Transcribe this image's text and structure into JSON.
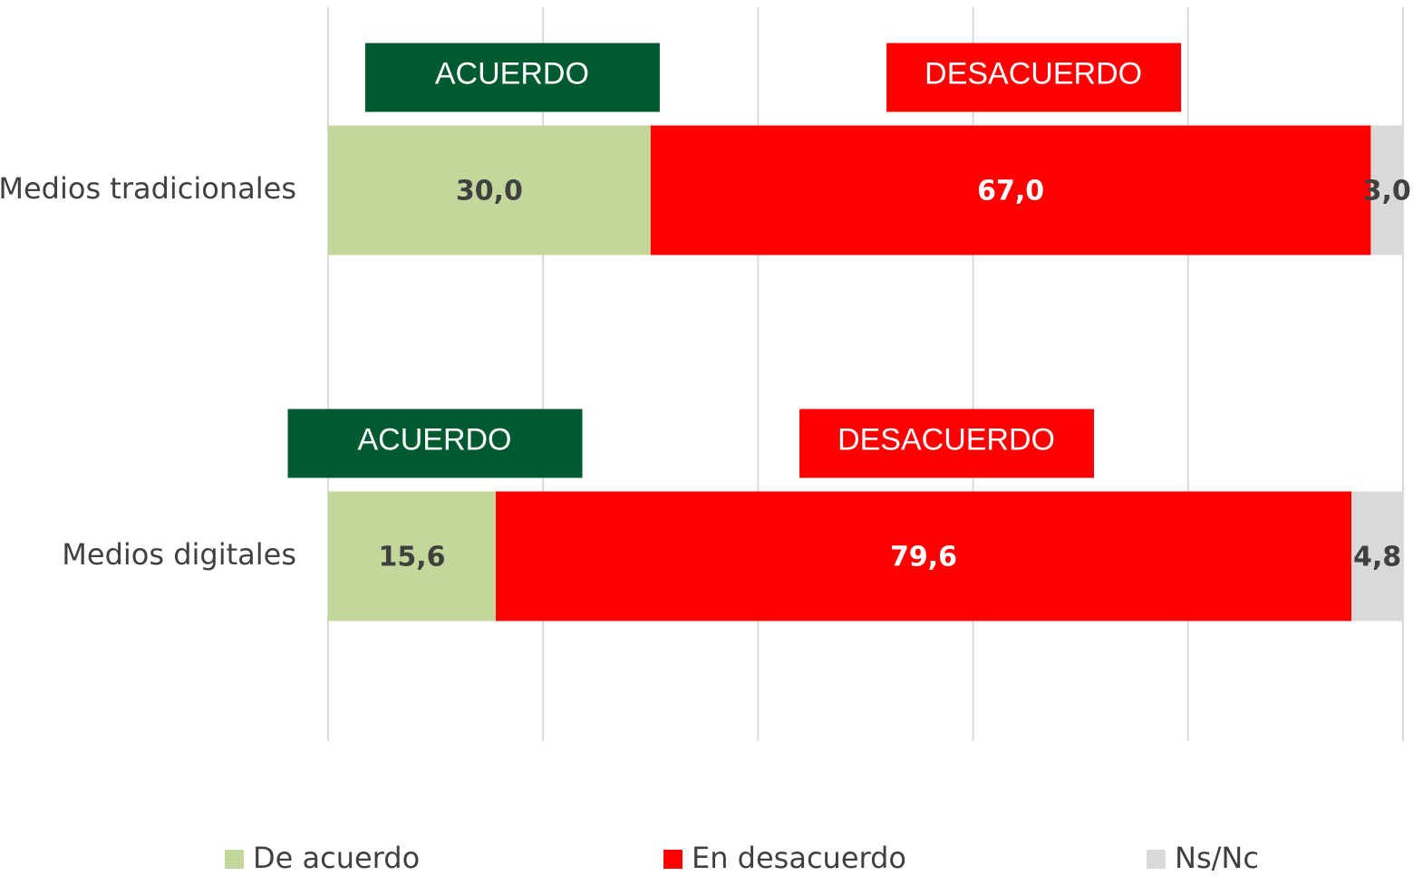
{
  "chart_data": {
    "type": "stacked-bar-horizontal",
    "categories": [
      "Medios tradicionales",
      "Medios digitales"
    ],
    "series": [
      {
        "name": "De acuerdo",
        "color": "#c4d79b",
        "values": [
          30.0,
          15.6
        ],
        "value_labels": [
          "30,0",
          "15,6"
        ]
      },
      {
        "name": "En desacuerdo",
        "color": "#ff0000",
        "values": [
          67.0,
          79.6
        ],
        "value_labels": [
          "67,0",
          "79,6"
        ]
      },
      {
        "name": "Ns/Nc",
        "color": "#d9d9d9",
        "values": [
          3.0,
          4.8
        ],
        "value_labels": [
          "3,0",
          "4,8"
        ]
      }
    ],
    "annotations": [
      {
        "text": "ACUERDO",
        "color": "#005a2f"
      },
      {
        "text": "DESACUERDO",
        "color": "#ff0000"
      }
    ],
    "xlim": [
      0,
      100
    ],
    "xticks": [
      0,
      20,
      40,
      60,
      80,
      100
    ],
    "grid": true,
    "legend": "bottom"
  }
}
